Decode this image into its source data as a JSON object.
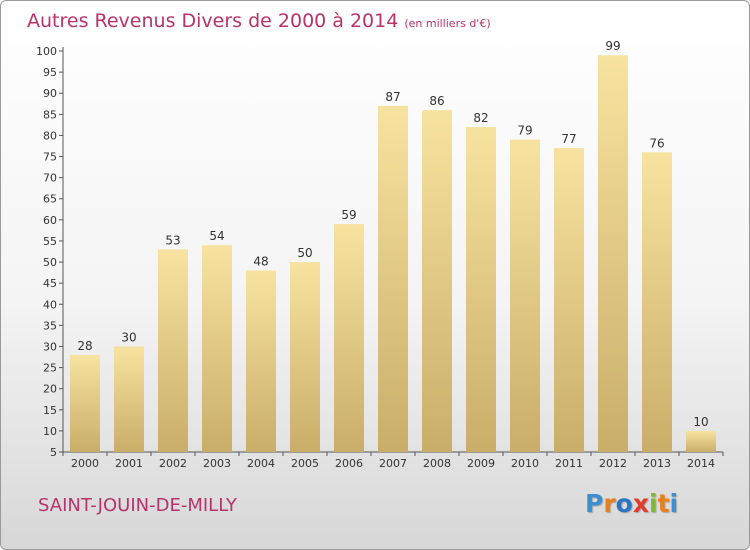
{
  "header": {
    "title": "Autres Revenus Divers de 2000 à 2014",
    "unit": "(en milliers d'€)"
  },
  "footer": {
    "commune": "SAINT-JOUIN-DE-MILLY",
    "logo": "Proxiti"
  },
  "colors": {
    "title": "#b8336a",
    "bar_top": "#f7e3a0",
    "bar_bottom": "#c9ae69",
    "logo_letters": [
      "#3d8fd1",
      "#e8811d",
      "#2a74c4",
      "#e23c2b",
      "#7fb83a",
      "#e8811d",
      "#3d8fd1"
    ]
  },
  "chart_data": {
    "type": "bar",
    "categories": [
      "2000",
      "2001",
      "2002",
      "2003",
      "2004",
      "2005",
      "2006",
      "2007",
      "2008",
      "2009",
      "2010",
      "2011",
      "2012",
      "2013",
      "2014"
    ],
    "values": [
      28,
      30,
      53,
      54,
      48,
      50,
      59,
      87,
      86,
      82,
      79,
      77,
      99,
      76,
      10
    ],
    "ylim": [
      5,
      100
    ],
    "yticks": [
      5,
      10,
      15,
      20,
      25,
      30,
      35,
      40,
      45,
      50,
      55,
      60,
      65,
      70,
      75,
      80,
      85,
      90,
      95,
      100
    ],
    "grid": false,
    "data_labels": true
  }
}
